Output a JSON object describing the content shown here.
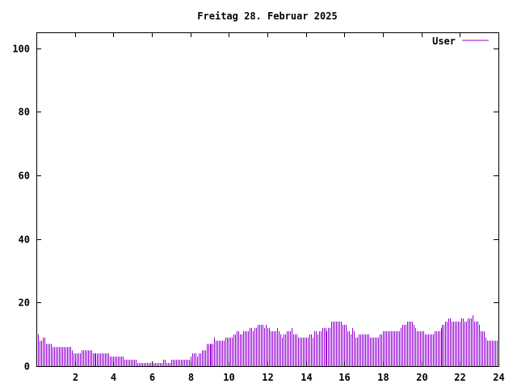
{
  "chart_data": {
    "type": "bar",
    "style": "impulses",
    "title": "Freitag 28. Februar 2025",
    "xlabel": "",
    "ylabel": "",
    "xlim": [
      0,
      24
    ],
    "ylim": [
      0,
      105
    ],
    "x_ticks": [
      "2",
      "4",
      "6",
      "8",
      "10",
      "12",
      "14",
      "16",
      "18",
      "20",
      "22",
      "24"
    ],
    "y_ticks": [
      "0",
      "20",
      "40",
      "60",
      "80",
      "100"
    ],
    "grid": false,
    "legend_position": "top-right",
    "x_interval_minutes": 5,
    "series": [
      {
        "name": "User",
        "color": "#9400d3",
        "values": [
          11,
          10,
          8,
          8,
          9,
          9,
          7,
          7,
          7,
          7,
          6,
          6,
          6,
          6,
          6,
          6,
          6,
          6,
          6,
          6,
          6,
          6,
          5,
          4,
          4,
          4,
          4,
          4,
          5,
          5,
          5,
          5,
          5,
          5,
          5,
          4,
          4,
          4,
          4,
          4,
          4,
          4,
          4,
          4,
          4,
          4,
          3,
          3,
          3,
          3,
          3,
          3,
          3,
          3,
          3,
          2,
          2,
          2,
          2,
          2,
          2,
          2,
          2,
          1,
          1,
          1,
          1,
          1,
          1,
          1,
          1,
          1,
          1,
          1,
          1,
          1,
          1,
          1,
          1,
          2,
          2,
          1,
          1,
          1,
          2,
          2,
          2,
          2,
          2,
          2,
          2,
          2,
          2,
          2,
          2,
          2,
          3,
          4,
          4,
          4,
          3,
          4,
          4,
          5,
          5,
          5,
          7,
          7,
          7,
          7,
          7,
          9,
          8,
          8,
          8,
          8,
          8,
          8,
          9,
          9,
          9,
          9,
          9,
          10,
          10,
          11,
          11,
          10,
          10,
          11,
          11,
          11,
          11,
          12,
          12,
          11,
          12,
          12,
          13,
          13,
          13,
          13,
          12,
          13,
          12,
          12,
          11,
          11,
          11,
          11,
          12,
          11,
          10,
          9,
          10,
          10,
          11,
          11,
          11,
          12,
          10,
          10,
          10,
          9,
          9,
          9,
          9,
          9,
          9,
          9,
          10,
          10,
          9,
          11,
          11,
          10,
          11,
          11,
          12,
          12,
          12,
          11,
          12,
          12,
          14,
          14,
          14,
          14,
          14,
          14,
          14,
          13,
          13,
          13,
          11,
          11,
          10,
          12,
          11,
          9,
          9,
          10,
          10,
          10,
          10,
          10,
          10,
          10,
          9,
          9,
          9,
          9,
          9,
          9,
          10,
          10,
          11,
          11,
          11,
          11,
          11,
          11,
          11,
          11,
          11,
          11,
          11,
          12,
          13,
          13,
          13,
          14,
          14,
          14,
          14,
          13,
          12,
          11,
          11,
          11,
          11,
          11,
          10,
          10,
          10,
          10,
          10,
          10,
          11,
          11,
          11,
          11,
          12,
          13,
          13,
          14,
          14,
          15,
          15,
          14,
          14,
          14,
          14,
          14,
          14,
          15,
          15,
          14,
          14,
          15,
          15,
          15,
          16,
          14,
          14,
          14,
          13,
          11,
          11,
          11,
          9,
          8,
          8,
          8,
          8,
          8,
          8,
          8
        ]
      }
    ]
  }
}
